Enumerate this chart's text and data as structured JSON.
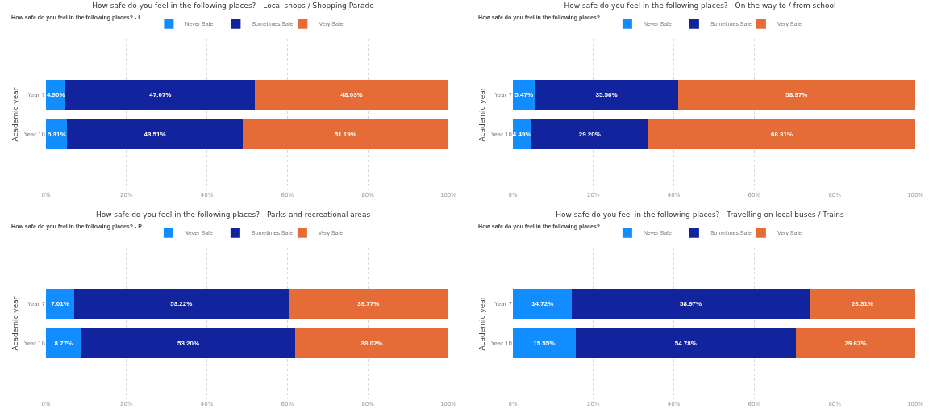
{
  "chart_data": [
    {
      "type": "bar",
      "orientation": "horizontal",
      "stacked": true,
      "title": "How safe do you feel in the following places? - Local shops / Shopping Parade",
      "legend_title": "How safe do you feel in the following places? - L...",
      "ylabel": "Academic year",
      "categories": [
        "Year 7",
        "Year 10"
      ],
      "legend": "top left",
      "grid": "x",
      "xlim": [
        0,
        100.01
      ],
      "xticks": [
        {
          "value": 0,
          "label": "0%"
        },
        {
          "value": 20,
          "label": "20%"
        },
        {
          "value": 40,
          "label": "40%"
        },
        {
          "value": 60,
          "label": "60%"
        },
        {
          "value": 80,
          "label": "80%"
        },
        {
          "value": 100,
          "label": "100%"
        }
      ],
      "series": [
        {
          "name": "Never Safe",
          "color": "#118dff",
          "values": [
            4.9,
            5.31
          ],
          "value_labels": [
            "4.90%",
            "5.31%"
          ]
        },
        {
          "name": "Sometimes Safe",
          "color": "#12239e",
          "values": [
            47.07,
            43.51
          ],
          "value_labels": [
            "47.07%",
            "43.51%"
          ]
        },
        {
          "name": "Very Safe",
          "color": "#e66c37",
          "values": [
            48.03,
            51.19
          ],
          "value_labels": [
            "48.03%",
            "51.19%"
          ]
        }
      ]
    },
    {
      "type": "bar",
      "orientation": "horizontal",
      "stacked": true,
      "title": "How safe do you feel in the following places? - On the way to / from school",
      "legend_title": "How safe do you feel in the following places?...",
      "ylabel": "Academic year",
      "categories": [
        "Year 7",
        "Year 10"
      ],
      "legend": "top left",
      "grid": "x",
      "xlim": [
        0,
        100
      ],
      "xticks": [
        {
          "value": 0,
          "label": "0%"
        },
        {
          "value": 20,
          "label": "20%"
        },
        {
          "value": 40,
          "label": "40%"
        },
        {
          "value": 60,
          "label": "60%"
        },
        {
          "value": 80,
          "label": "80%"
        },
        {
          "value": 100,
          "label": "100%"
        }
      ],
      "series": [
        {
          "name": "Never Safe",
          "color": "#118dff",
          "values": [
            5.47,
            4.49
          ],
          "value_labels": [
            "5.47%",
            "4.49%"
          ]
        },
        {
          "name": "Sometimes Safe",
          "color": "#12239e",
          "values": [
            35.56,
            29.2
          ],
          "value_labels": [
            "35.56%",
            "29.20%"
          ]
        },
        {
          "name": "Very Safe",
          "color": "#e66c37",
          "values": [
            58.97,
            66.31
          ],
          "value_labels": [
            "58.97%",
            "66.31%"
          ]
        }
      ]
    },
    {
      "type": "bar",
      "orientation": "horizontal",
      "stacked": true,
      "title": "How safe do you feel in the following places? - Parks and recreational areas",
      "legend_title": "How safe do you feel in the following places? - P...",
      "ylabel": "Academic year",
      "categories": [
        "Year 7",
        "Year 10"
      ],
      "legend": "top left",
      "grid": "x",
      "xlim": [
        0,
        100
      ],
      "xticks": [
        {
          "value": 0,
          "label": "0%"
        },
        {
          "value": 20,
          "label": "20%"
        },
        {
          "value": 40,
          "label": "40%"
        },
        {
          "value": 60,
          "label": "60%"
        },
        {
          "value": 80,
          "label": "80%"
        },
        {
          "value": 100,
          "label": "100%"
        }
      ],
      "series": [
        {
          "name": "Never Safe",
          "color": "#118dff",
          "values": [
            7.01,
            8.77
          ],
          "value_labels": [
            "7.01%",
            "8.77%"
          ]
        },
        {
          "name": "Sometimes Safe",
          "color": "#12239e",
          "values": [
            53.22,
            53.2
          ],
          "value_labels": [
            "53.22%",
            "53.20%"
          ]
        },
        {
          "name": "Very Safe",
          "color": "#e66c37",
          "values": [
            39.77,
            38.02
          ],
          "value_labels": [
            "39.77%",
            "38.02%"
          ]
        }
      ]
    },
    {
      "type": "bar",
      "orientation": "horizontal",
      "stacked": true,
      "title": "How safe do you feel in the following places? - Travelling on local buses / Trains",
      "legend_title": "How safe do you feel in the following places?...",
      "ylabel": "Academic year",
      "categories": [
        "Year 7",
        "Year 10"
      ],
      "legend": "top left",
      "grid": "x",
      "xlim": [
        0,
        100
      ],
      "xticks": [
        {
          "value": 0,
          "label": "0%"
        },
        {
          "value": 20,
          "label": "20%"
        },
        {
          "value": 40,
          "label": "40%"
        },
        {
          "value": 60,
          "label": "60%"
        },
        {
          "value": 80,
          "label": "80%"
        },
        {
          "value": 100,
          "label": "100%"
        }
      ],
      "series": [
        {
          "name": "Never Safe",
          "color": "#118dff",
          "values": [
            14.72,
            15.55
          ],
          "value_labels": [
            "14.72%",
            "15.55%"
          ]
        },
        {
          "name": "Sometimes Safe",
          "color": "#12239e",
          "values": [
            58.97,
            54.78
          ],
          "value_labels": [
            "58.97%",
            "54.78%"
          ]
        },
        {
          "name": "Very Safe",
          "color": "#e66c37",
          "values": [
            26.31,
            29.67
          ],
          "value_labels": [
            "26.31%",
            "29.67%"
          ]
        }
      ]
    }
  ]
}
